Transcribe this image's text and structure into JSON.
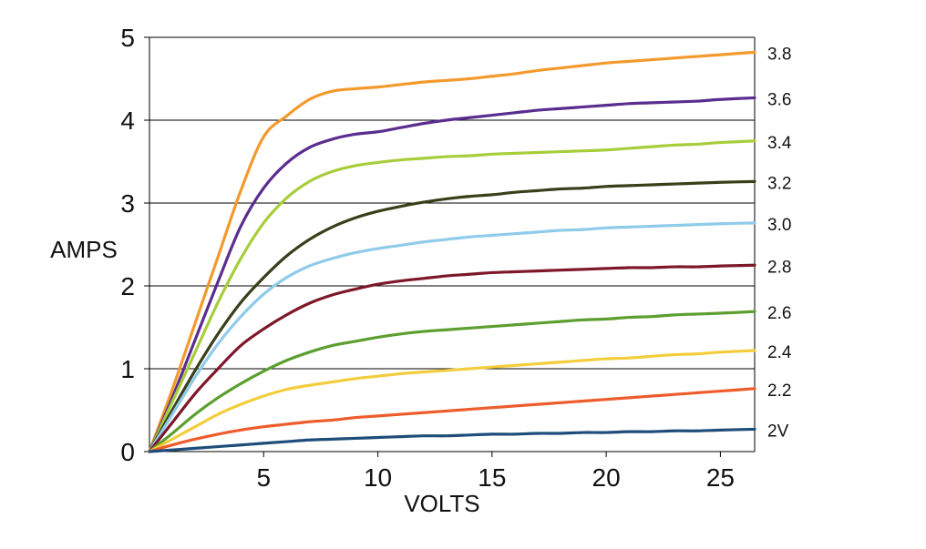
{
  "chart_data": {
    "type": "line",
    "title": "",
    "xlabel": "VOLTS",
    "ylabel": "AMPS",
    "xlim": [
      0,
      26.5
    ],
    "ylim": [
      0,
      5
    ],
    "xticks": [
      5,
      10,
      15,
      20,
      25
    ],
    "yticks": [
      0,
      1,
      2,
      3,
      4,
      5
    ],
    "x": [
      0,
      1,
      2,
      3,
      4,
      5,
      6,
      7,
      8,
      9,
      10,
      11,
      12,
      13,
      14,
      15,
      16,
      17,
      18,
      19,
      20,
      21,
      22,
      23,
      24,
      25,
      26.5
    ],
    "grid": {
      "horizontal": true,
      "vertical": false
    },
    "legend": "right",
    "series": [
      {
        "name": "3.8",
        "color": "#f39a2d",
        "values": [
          0.0,
          0.75,
          1.55,
          2.35,
          3.15,
          3.8,
          4.05,
          4.25,
          4.35,
          4.38,
          4.4,
          4.43,
          4.46,
          4.48,
          4.5,
          4.53,
          4.56,
          4.6,
          4.63,
          4.66,
          4.69,
          4.71,
          4.73,
          4.75,
          4.77,
          4.79,
          4.82
        ]
      },
      {
        "name": "3.6",
        "color": "#5a2d8f",
        "values": [
          0.0,
          0.65,
          1.35,
          2.05,
          2.72,
          3.18,
          3.48,
          3.67,
          3.77,
          3.83,
          3.86,
          3.91,
          3.96,
          4.0,
          4.03,
          4.06,
          4.09,
          4.12,
          4.14,
          4.16,
          4.18,
          4.2,
          4.21,
          4.22,
          4.23,
          4.25,
          4.27
        ]
      },
      {
        "name": "3.4",
        "color": "#a8cd3a",
        "values": [
          0.0,
          0.6,
          1.2,
          1.8,
          2.33,
          2.76,
          3.06,
          3.26,
          3.38,
          3.45,
          3.49,
          3.52,
          3.54,
          3.56,
          3.57,
          3.59,
          3.6,
          3.61,
          3.62,
          3.63,
          3.64,
          3.66,
          3.68,
          3.7,
          3.71,
          3.73,
          3.75
        ]
      },
      {
        "name": "3.2",
        "color": "#3a3f1a",
        "values": [
          0.0,
          0.5,
          0.98,
          1.42,
          1.8,
          2.1,
          2.36,
          2.56,
          2.71,
          2.82,
          2.9,
          2.96,
          3.01,
          3.05,
          3.08,
          3.1,
          3.13,
          3.15,
          3.17,
          3.18,
          3.2,
          3.21,
          3.22,
          3.23,
          3.24,
          3.25,
          3.26
        ]
      },
      {
        "name": "3.0",
        "color": "#8fcbea",
        "values": [
          0.0,
          0.45,
          0.9,
          1.3,
          1.63,
          1.9,
          2.1,
          2.24,
          2.33,
          2.4,
          2.45,
          2.49,
          2.53,
          2.56,
          2.59,
          2.61,
          2.63,
          2.65,
          2.67,
          2.68,
          2.7,
          2.71,
          2.72,
          2.73,
          2.74,
          2.75,
          2.76
        ]
      },
      {
        "name": "2.8",
        "color": "#7d1729",
        "values": [
          0.0,
          0.35,
          0.7,
          1.0,
          1.28,
          1.48,
          1.65,
          1.79,
          1.89,
          1.96,
          2.02,
          2.06,
          2.09,
          2.12,
          2.14,
          2.16,
          2.17,
          2.18,
          2.19,
          2.2,
          2.21,
          2.22,
          2.22,
          2.23,
          2.23,
          2.24,
          2.25
        ]
      },
      {
        "name": "2.6",
        "color": "#5c9e2f",
        "values": [
          0.0,
          0.22,
          0.45,
          0.65,
          0.82,
          0.97,
          1.1,
          1.2,
          1.28,
          1.33,
          1.38,
          1.42,
          1.45,
          1.47,
          1.49,
          1.51,
          1.53,
          1.55,
          1.57,
          1.59,
          1.6,
          1.62,
          1.63,
          1.65,
          1.66,
          1.67,
          1.69
        ]
      },
      {
        "name": "2.4",
        "color": "#f3cd3c",
        "values": [
          0.0,
          0.15,
          0.3,
          0.45,
          0.57,
          0.67,
          0.75,
          0.8,
          0.84,
          0.88,
          0.91,
          0.94,
          0.96,
          0.98,
          1.0,
          1.02,
          1.04,
          1.06,
          1.08,
          1.1,
          1.12,
          1.13,
          1.15,
          1.17,
          1.18,
          1.2,
          1.22
        ]
      },
      {
        "name": "2.2",
        "color": "#ee5c2c",
        "values": [
          0.0,
          0.08,
          0.15,
          0.21,
          0.26,
          0.3,
          0.33,
          0.36,
          0.38,
          0.41,
          0.43,
          0.45,
          0.47,
          0.49,
          0.51,
          0.53,
          0.55,
          0.57,
          0.59,
          0.61,
          0.63,
          0.65,
          0.67,
          0.69,
          0.71,
          0.73,
          0.76
        ]
      },
      {
        "name": "2V",
        "color": "#1f4d7a",
        "values": [
          0.0,
          0.02,
          0.04,
          0.06,
          0.08,
          0.1,
          0.12,
          0.14,
          0.15,
          0.16,
          0.17,
          0.18,
          0.19,
          0.19,
          0.2,
          0.21,
          0.21,
          0.22,
          0.22,
          0.23,
          0.23,
          0.24,
          0.24,
          0.25,
          0.25,
          0.26,
          0.27
        ]
      }
    ]
  }
}
